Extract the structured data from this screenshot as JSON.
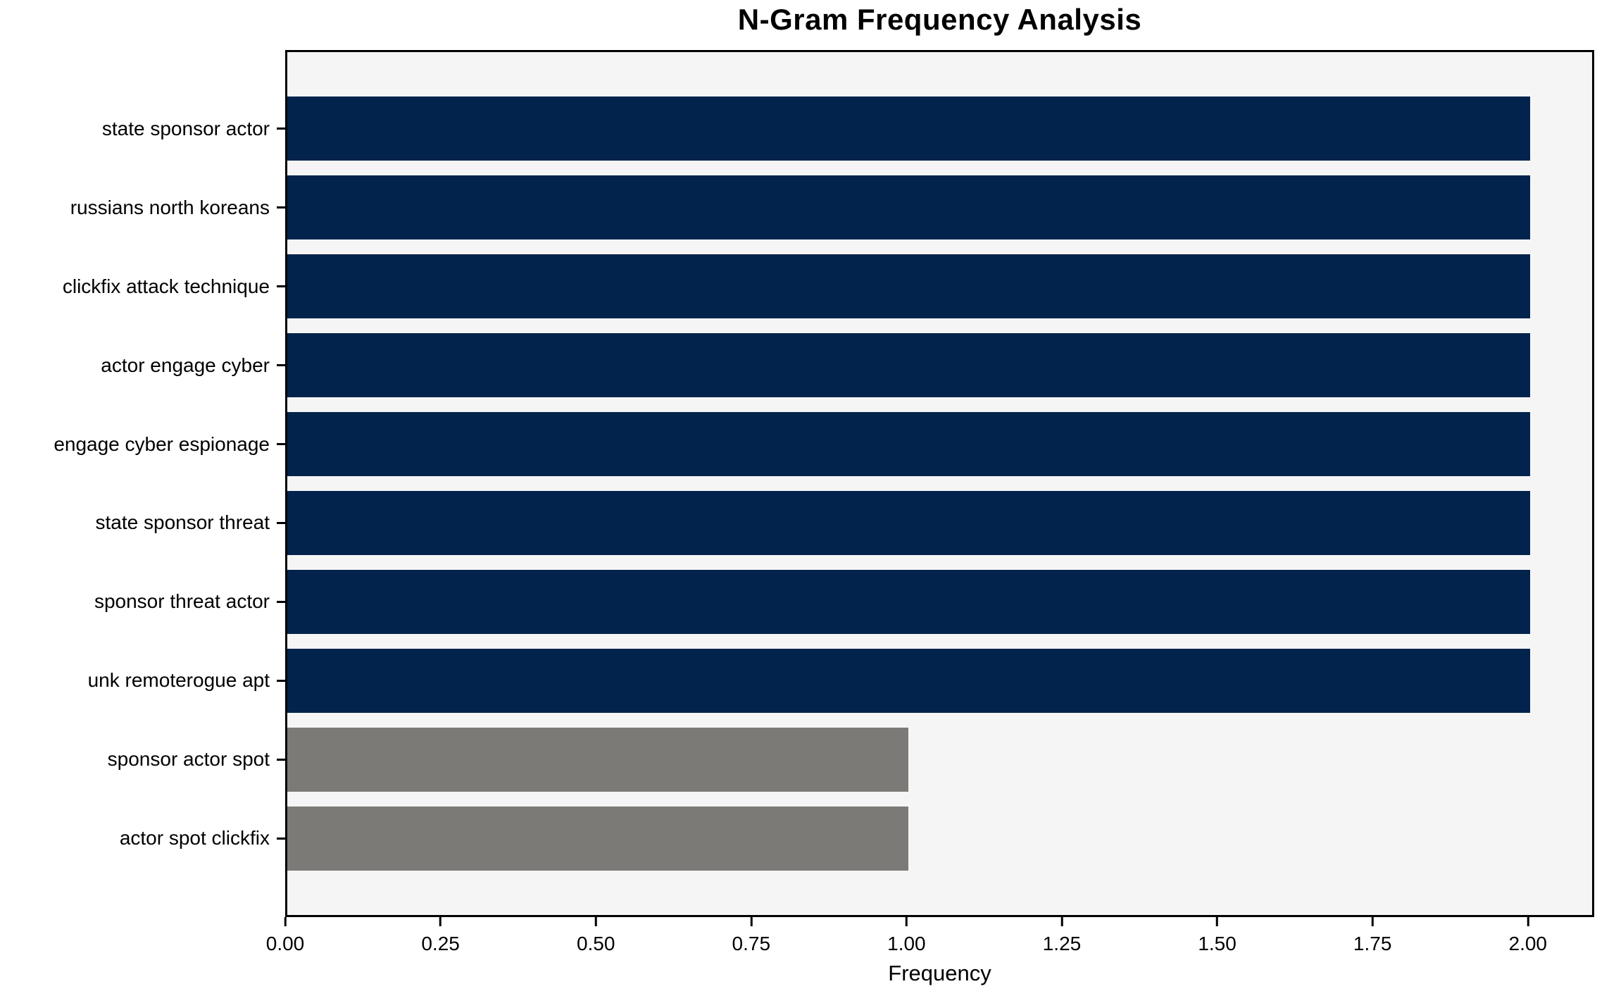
{
  "figure": {
    "background_color": "#ffffff",
    "plot_background_color": "#f5f5f5",
    "spine_color": "#000000",
    "text_color": "#000000"
  },
  "chart_data": {
    "type": "bar",
    "orientation": "horizontal",
    "title": "N-Gram Frequency Analysis",
    "xlabel": "Frequency",
    "ylabel": "",
    "categories": [
      "state sponsor actor",
      "russians north koreans",
      "clickfix attack technique",
      "actor engage cyber",
      "engage cyber espionage",
      "state sponsor threat",
      "sponsor threat actor",
      "unk remoterogue apt",
      "sponsor actor spot",
      "actor spot clickfix"
    ],
    "values": [
      2,
      2,
      2,
      2,
      2,
      2,
      2,
      2,
      1,
      1
    ],
    "bar_colors": [
      "#02234c",
      "#02234c",
      "#02234c",
      "#02234c",
      "#02234c",
      "#02234c",
      "#02234c",
      "#02234c",
      "#7b7a76",
      "#7b7a76"
    ],
    "xlim": [
      0,
      2.1
    ],
    "xtick_values": [
      0,
      0.25,
      0.5,
      0.75,
      1.0,
      1.25,
      1.5,
      1.75,
      2.0
    ],
    "xtick_labels": [
      "0.00",
      "0.25",
      "0.50",
      "0.75",
      "1.00",
      "1.25",
      "1.50",
      "1.75",
      "2.00"
    ],
    "grid": false,
    "legend": null
  }
}
